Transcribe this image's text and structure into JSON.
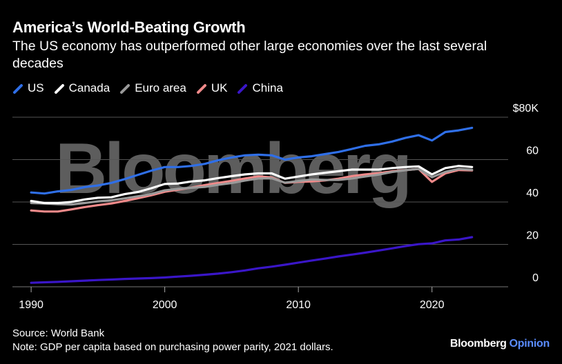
{
  "header": {
    "title": "America’s World-Beating Growth",
    "subtitle": "The US economy has outperformed other large economies over the last several decades"
  },
  "footer": {
    "source": "Source: World Bank",
    "note": "Note: GDP per capita based on purchasing power parity, 2021 dollars.",
    "brand_main": "Bloomberg",
    "brand_sub": "Opinion"
  },
  "watermark": "Bloomberg",
  "colors": {
    "background": "#000000",
    "US": "#2f6fe8",
    "Canada": "#ffffff",
    "Euro area": "#9a9a9a",
    "UK": "#f08a8a",
    "China": "#3a16c8",
    "grid": "#555555",
    "brand_accent": "#5a8cff"
  },
  "chart_data": {
    "type": "line",
    "title": "America’s World-Beating Growth",
    "x": [
      1990,
      1991,
      1992,
      1993,
      1994,
      1995,
      1996,
      1997,
      1998,
      1999,
      2000,
      2001,
      2002,
      2003,
      2004,
      2005,
      2006,
      2007,
      2008,
      2009,
      2010,
      2011,
      2012,
      2013,
      2014,
      2015,
      2016,
      2017,
      2018,
      2019,
      2020,
      2021,
      2022,
      2023
    ],
    "xticks": [
      "1990",
      "2000",
      "2010",
      "2020"
    ],
    "ylim": [
      0,
      80
    ],
    "yticks": [
      {
        "value": 0,
        "label": "0"
      },
      {
        "value": 20,
        "label": "20"
      },
      {
        "value": 40,
        "label": "40"
      },
      {
        "value": 60,
        "label": "60"
      },
      {
        "value": 80,
        "label": "$80K"
      }
    ],
    "grid": true,
    "legend_position": "top-left",
    "series": [
      {
        "name": "US",
        "values": [
          44.5,
          44.0,
          45.0,
          45.7,
          47.0,
          47.8,
          49.0,
          50.8,
          52.8,
          54.8,
          56.5,
          56.5,
          57.0,
          58.0,
          59.7,
          61.0,
          62.0,
          62.3,
          62.0,
          60.0,
          61.0,
          61.6,
          62.6,
          63.6,
          65.0,
          66.5,
          67.2,
          68.5,
          70.2,
          71.5,
          69.0,
          73.0,
          73.8,
          75.0
        ]
      },
      {
        "name": "Canada",
        "values": [
          40.5,
          39.5,
          39.5,
          40.0,
          41.2,
          42.0,
          42.2,
          43.7,
          44.7,
          46.5,
          48.5,
          48.7,
          49.7,
          50.2,
          51.3,
          52.2,
          53.0,
          53.5,
          53.5,
          51.0,
          52.0,
          53.0,
          53.8,
          54.5,
          55.3,
          55.3,
          55.3,
          56.0,
          56.5,
          56.8,
          53.0,
          56.0,
          57.0,
          56.5
        ]
      },
      {
        "name": "Euro area",
        "values": [
          39.5,
          39.3,
          39.0,
          38.8,
          39.5,
          40.3,
          40.8,
          41.7,
          42.7,
          43.8,
          45.5,
          46.2,
          46.7,
          47.1,
          48.1,
          48.9,
          50.1,
          51.1,
          51.2,
          49.1,
          49.9,
          50.6,
          50.4,
          50.4,
          51.1,
          52.0,
          52.9,
          54.1,
          55.0,
          55.6,
          51.7,
          54.2,
          55.6,
          55.2
        ]
      },
      {
        "name": "UK",
        "values": [
          36.0,
          35.5,
          35.5,
          36.5,
          37.6,
          38.5,
          39.3,
          40.5,
          41.8,
          43.2,
          44.8,
          45.8,
          46.8,
          48.0,
          49.0,
          50.0,
          51.1,
          52.1,
          51.6,
          49.0,
          49.5,
          49.7,
          50.2,
          51.0,
          52.2,
          53.0,
          53.6,
          54.5,
          55.0,
          55.6,
          49.5,
          53.5,
          55.1,
          54.9
        ]
      },
      {
        "name": "China",
        "values": [
          1.9,
          2.1,
          2.3,
          2.6,
          2.9,
          3.2,
          3.4,
          3.7,
          3.9,
          4.1,
          4.4,
          4.8,
          5.2,
          5.7,
          6.2,
          6.9,
          7.7,
          8.7,
          9.5,
          10.4,
          11.4,
          12.4,
          13.3,
          14.3,
          15.2,
          16.1,
          17.1,
          18.1,
          19.2,
          20.1,
          20.5,
          21.9,
          22.3,
          23.4
        ]
      }
    ]
  }
}
